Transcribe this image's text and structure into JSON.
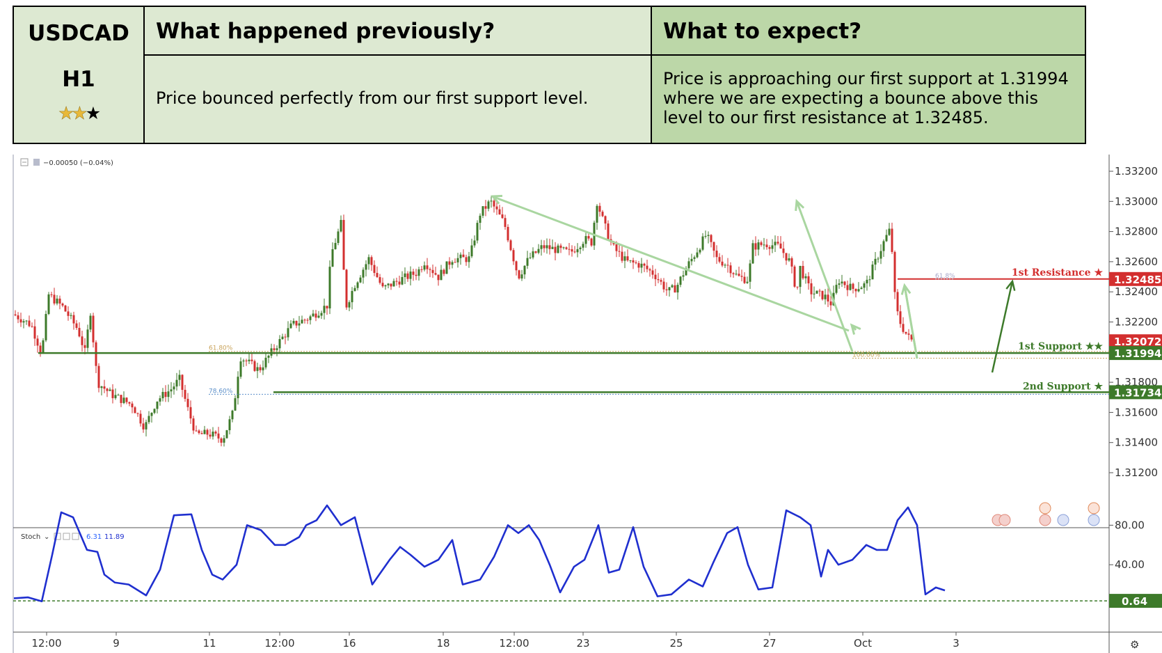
{
  "header": {
    "symbol": "USDCAD",
    "timeframe": "H1",
    "rating": {
      "filled": 2,
      "total": 3
    },
    "previous_title": "What happened previously?",
    "previous_text": "Price bounced perfectly from our first support level.",
    "expect_title": "What to expect?",
    "expect_text": "Price is approaching our first support at 1.31994 where we are expecting a bounce above this level to our first resistance at 1.32485."
  },
  "chart_data": {
    "type": "candlestick",
    "symbol": "USDCAD",
    "timeframe": "H1",
    "change_readout": "−0.00050 (−0.04%)",
    "y_ticks": [
      "1.33200",
      "1.33000",
      "1.32800",
      "1.32600",
      "1.32400",
      "1.32200",
      "1.31800",
      "1.31600",
      "1.31400",
      "1.31200"
    ],
    "ylim": [
      1.3105,
      1.3335
    ],
    "x_ticks": [
      "12:00",
      "9",
      "11",
      "12:00",
      "16",
      "18",
      "12:00",
      "23",
      "25",
      "27",
      "Oct",
      "3"
    ],
    "last_price": {
      "label": "1.32072",
      "value": 1.32072
    },
    "levels": [
      {
        "name": "1st Resistance",
        "stars": 1,
        "value": 1.32485,
        "label": "1.32485",
        "color": "#d32f2f"
      },
      {
        "name": "1st Support",
        "stars": 2,
        "value": 1.31994,
        "label": "1.31994",
        "color": "#3d7a2a"
      },
      {
        "name": "2nd Support",
        "stars": 1,
        "value": 1.31734,
        "label": "1.31734",
        "color": "#3d7a2a"
      }
    ],
    "fib_levels": [
      {
        "label": "61.80%",
        "value": 1.32005,
        "color": "#c9a35a"
      },
      {
        "label": "78.60%",
        "value": 1.3172,
        "color": "#5b8fc9"
      },
      {
        "label": "100.00%",
        "value": 1.3196,
        "color": "#c9a35a"
      },
      {
        "label": "61.8%",
        "value": 1.32485,
        "color": "#a7a7c9"
      }
    ],
    "oscillator": {
      "name": "Stoch",
      "values_label": [
        "6.31",
        "11.89"
      ],
      "y_ticks": [
        "80.00",
        "40.00"
      ],
      "ylim": [
        0,
        100
      ],
      "threshold": {
        "label": "0.64",
        "value": 0.64
      }
    },
    "colors": {
      "up": "#3d7a2a",
      "down": "#d32f2f",
      "stoch": "#1f2fcf"
    }
  }
}
